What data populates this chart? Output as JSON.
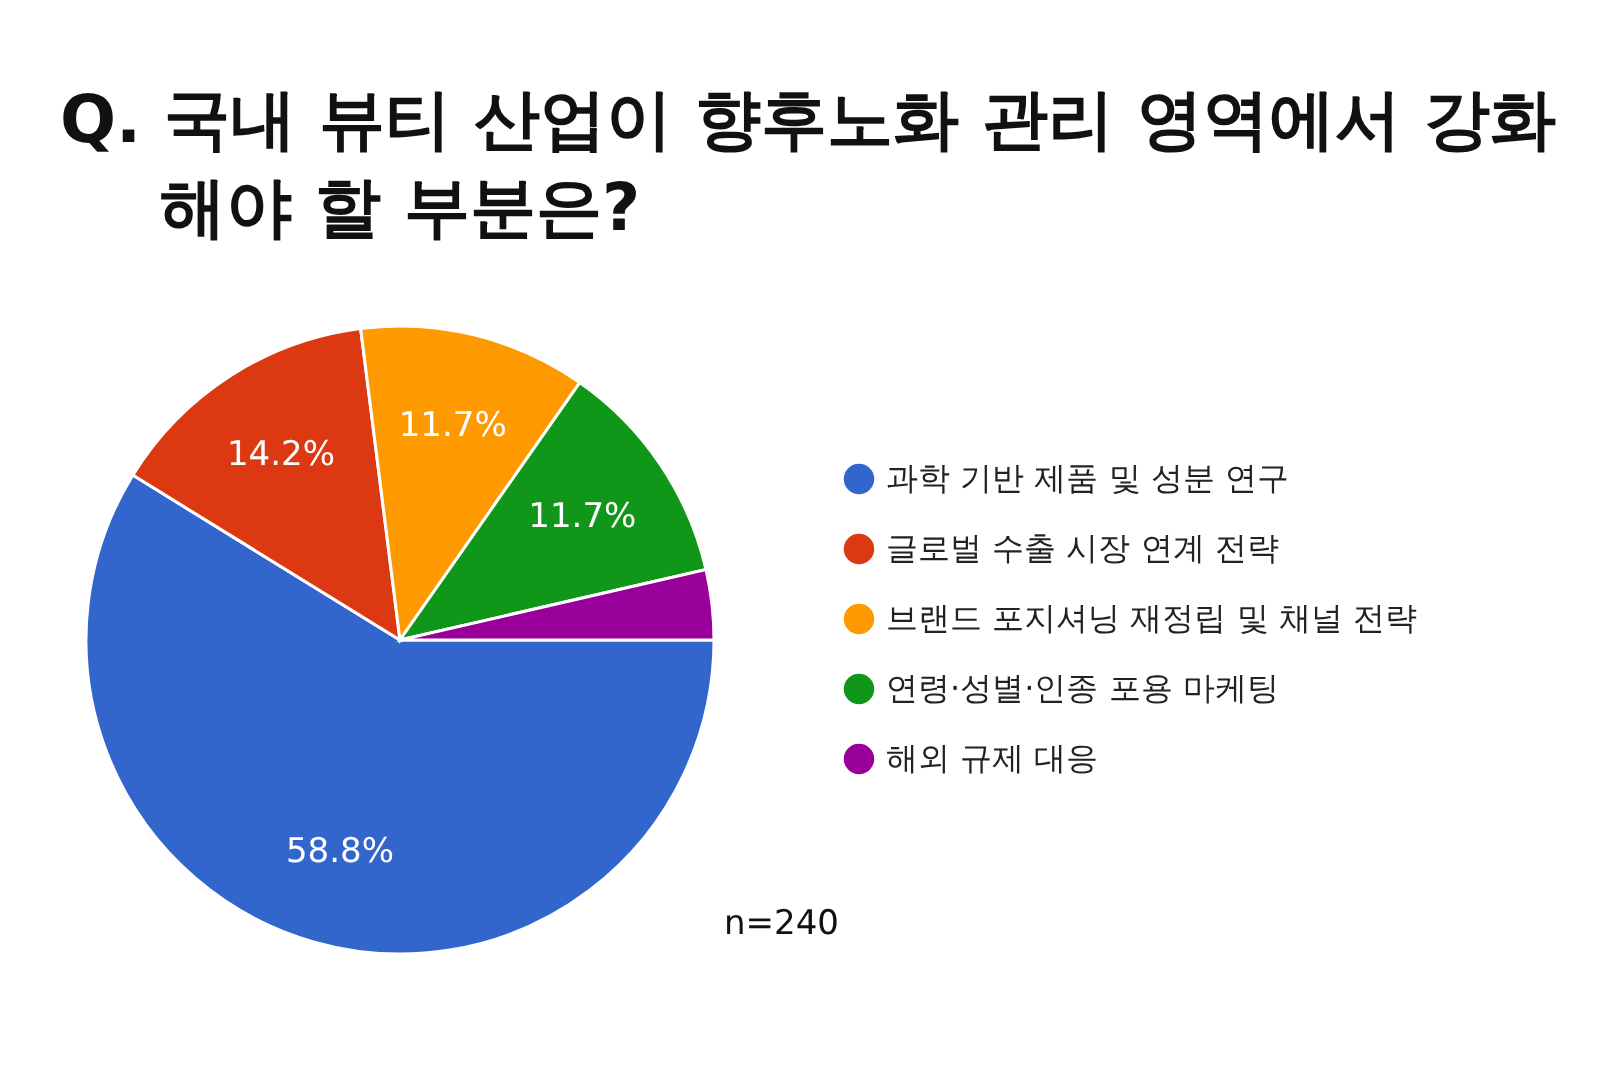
{
  "chart_data": {
    "type": "pie",
    "title": "Q. 국내 뷰티 산업이 향후노화 관리 영역에서 강화해야 할 부분은?",
    "categories": [
      "과학 기반 제품 및 성분 연구",
      "글로벌 수출 시장 연계 전략",
      "브랜드 포지셔닝 재정립 및 채널 전략",
      "연령·성별·인종 포용 마케팅",
      "해외 규제 대응"
    ],
    "values": [
      58.8,
      14.2,
      11.7,
      11.7,
      3.6
    ],
    "colors": [
      "#3366cc",
      "#dc3912",
      "#ff9900",
      "#109618",
      "#990099"
    ],
    "value_labels": [
      "58.8%",
      "14.2%",
      "11.7%",
      "11.7%",
      null
    ],
    "legend": "right",
    "annotations": [
      "n=240"
    ]
  }
}
